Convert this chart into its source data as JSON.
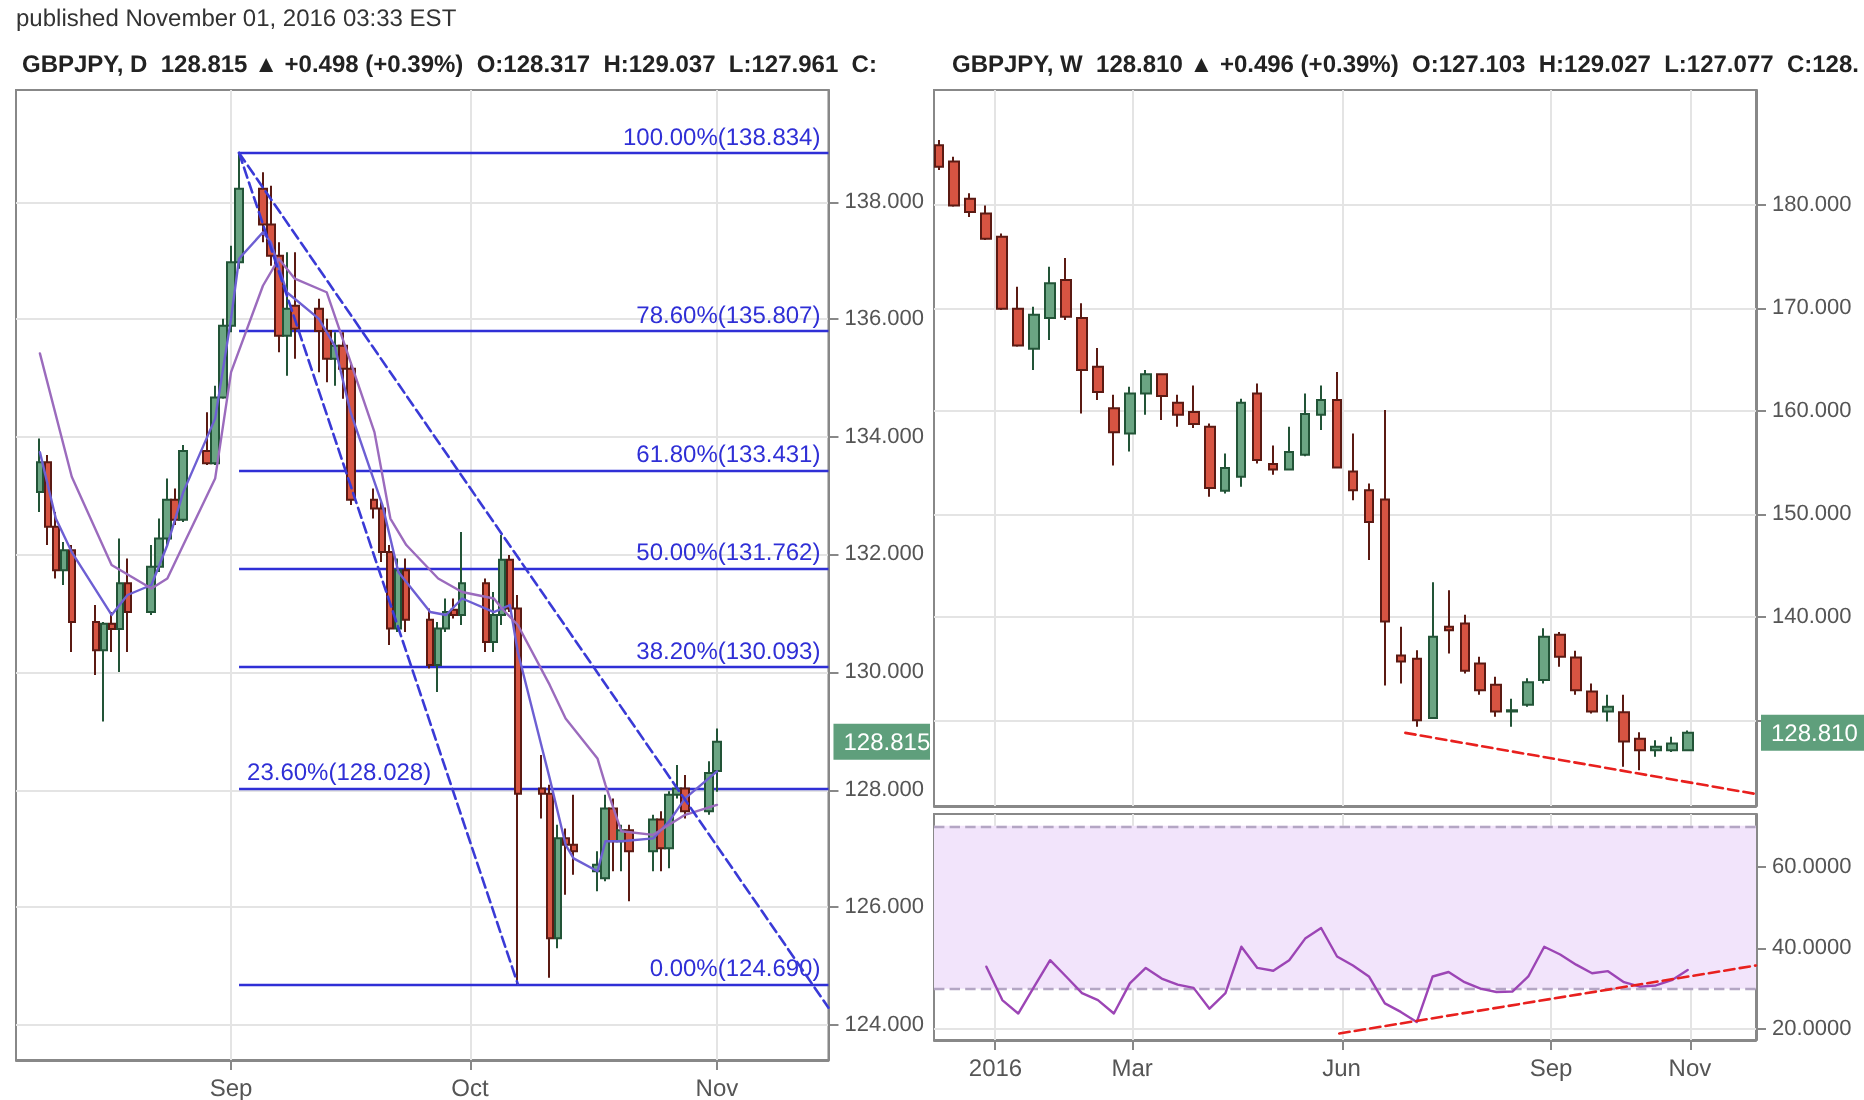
{
  "chart_data": [
    {
      "type": "candlestick",
      "title": "GBPJPY, D  128.815 ▲ +0.498 (+0.39%)  O:128.317  H:129.037  L:127.961  C:",
      "annotations": [
        "published November 01, 2016 03:33 EST",
        "128.815"
      ],
      "x": [
        "2016-08-08",
        "2016-08-09",
        "2016-08-10",
        "2016-08-11",
        "2016-08-12",
        "2016-08-15",
        "2016-08-16",
        "2016-08-17",
        "2016-08-18",
        "2016-08-19",
        "2016-08-22",
        "2016-08-23",
        "2016-08-24",
        "2016-08-25",
        "2016-08-26",
        "2016-08-29",
        "2016-08-30",
        "2016-08-31",
        "2016-09-01",
        "2016-09-02",
        "2016-09-05",
        "2016-09-06",
        "2016-09-07",
        "2016-09-08",
        "2016-09-09",
        "2016-09-12",
        "2016-09-13",
        "2016-09-14",
        "2016-09-15",
        "2016-09-16",
        "2016-09-19",
        "2016-09-20",
        "2016-09-21",
        "2016-09-22",
        "2016-09-23",
        "2016-09-26",
        "2016-09-27",
        "2016-09-28",
        "2016-09-29",
        "2016-09-30",
        "2016-10-03",
        "2016-10-04",
        "2016-10-05",
        "2016-10-06",
        "2016-10-07",
        "2016-10-10",
        "2016-10-11",
        "2016-10-12",
        "2016-10-13",
        "2016-10-14",
        "2016-10-17",
        "2016-10-18",
        "2016-10-19",
        "2016-10-20",
        "2016-10-21",
        "2016-10-24",
        "2016-10-25",
        "2016-10-26",
        "2016-10-27",
        "2016-10-28",
        "2016-10-31",
        "2016-11-01"
      ],
      "ohlc": [
        [
          133.06,
          133.97,
          132.72,
          133.57
        ],
        [
          133.57,
          133.69,
          132.16,
          132.47
        ],
        [
          132.47,
          132.72,
          131.59,
          131.73
        ],
        [
          131.73,
          132.21,
          131.48,
          132.07
        ],
        [
          132.07,
          132.16,
          130.34,
          130.85
        ],
        [
          130.85,
          131.14,
          129.95,
          130.37
        ],
        [
          130.37,
          130.85,
          129.16,
          130.82
        ],
        [
          130.82,
          131.02,
          130.34,
          130.73
        ],
        [
          130.73,
          132.27,
          130.0,
          131.51
        ],
        [
          131.51,
          131.93,
          130.34,
          131.02
        ],
        [
          131.02,
          132.16,
          130.97,
          131.79
        ],
        [
          131.79,
          132.61,
          131.7,
          132.27
        ],
        [
          132.27,
          133.29,
          132.16,
          132.93
        ],
        [
          132.93,
          133.12,
          132.5,
          132.59
        ],
        [
          132.59,
          133.86,
          132.55,
          133.76
        ],
        [
          133.76,
          134.42,
          133.52,
          133.55
        ],
        [
          133.55,
          134.87,
          133.52,
          134.67
        ],
        [
          134.67,
          136.01,
          134.65,
          135.89
        ],
        [
          135.89,
          137.25,
          135.78,
          136.97
        ],
        [
          136.97,
          138.83,
          136.86,
          138.22
        ],
        [
          138.22,
          138.5,
          137.31,
          137.61
        ],
        [
          137.61,
          138.27,
          136.91,
          137.08
        ],
        [
          137.08,
          137.31,
          135.44,
          135.72
        ],
        [
          135.72,
          137.14,
          135.04,
          136.18
        ],
        [
          136.23,
          137.14,
          135.33,
          135.84
        ],
        [
          136.18,
          136.35,
          135.1,
          135.8
        ],
        [
          135.8,
          136.01,
          134.93,
          135.33
        ],
        [
          135.33,
          135.78,
          134.87,
          135.55
        ],
        [
          135.55,
          135.78,
          134.65,
          135.16
        ],
        [
          135.16,
          135.27,
          132.84,
          132.93
        ],
        [
          132.93,
          133.12,
          132.61,
          132.78
        ],
        [
          132.78,
          132.89,
          131.87,
          132.04
        ],
        [
          132.04,
          132.16,
          130.46,
          130.74
        ],
        [
          130.74,
          131.93,
          130.68,
          131.73
        ],
        [
          131.73,
          131.93,
          130.68,
          130.89
        ],
        [
          130.89,
          131.08,
          130.06,
          130.12
        ],
        [
          130.12,
          130.85,
          129.66,
          130.74
        ],
        [
          130.74,
          131.25,
          130.68,
          131.02
        ],
        [
          131.06,
          131.25,
          130.91,
          130.97
        ],
        [
          130.97,
          132.38,
          130.8,
          131.51
        ],
        [
          131.51,
          131.59,
          130.34,
          130.51
        ],
        [
          130.51,
          131.36,
          130.34,
          130.97
        ],
        [
          130.97,
          132.33,
          130.8,
          131.91
        ],
        [
          131.91,
          131.99,
          131.02,
          131.08
        ],
        [
          131.08,
          131.31,
          124.69,
          127.93
        ],
        [
          128.02,
          128.59,
          127.51,
          127.93
        ],
        [
          127.93,
          128.08,
          124.8,
          125.47
        ],
        [
          125.47,
          127.4,
          125.3,
          127.17
        ],
        [
          127.17,
          127.34,
          126.21,
          127.06
        ],
        [
          127.06,
          127.91,
          126.55,
          126.95
        ],
        [
          126.61,
          126.95,
          126.27,
          126.72
        ],
        [
          126.49,
          127.91,
          126.44,
          127.68
        ],
        [
          127.68,
          127.85,
          126.61,
          127.12
        ],
        [
          127.12,
          127.4,
          126.61,
          127.31
        ],
        [
          127.31,
          127.4,
          126.1,
          126.95
        ],
        [
          126.95,
          127.57,
          126.61,
          127.49
        ],
        [
          127.49,
          127.63,
          126.61,
          127.0
        ],
        [
          127.0,
          127.97,
          126.66,
          127.91
        ],
        [
          127.91,
          128.42,
          127.85,
          128.02
        ],
        [
          128.02,
          128.25,
          127.51,
          127.63
        ],
        [
          127.63,
          128.48,
          127.57,
          128.28
        ],
        [
          128.317,
          129.037,
          127.961,
          128.815
        ]
      ],
      "series": [
        {
          "type": "line",
          "color": "#6d5fd3",
          "x": [
            "2016-08-08",
            "2016-08-10",
            "2016-08-12",
            "2016-08-17",
            "2016-08-19",
            "2016-08-22",
            "2016-08-24",
            "2016-08-26",
            "2016-08-30",
            "2016-09-01",
            "2016-09-02",
            "2016-09-05",
            "2016-09-06",
            "2016-09-08",
            "2016-09-12",
            "2016-09-14",
            "2016-09-16",
            "2016-09-20",
            "2016-09-22",
            "2016-09-26",
            "2016-09-28",
            "2016-09-30",
            "2016-10-04",
            "2016-10-06",
            "2016-10-07",
            "2016-10-11",
            "2016-10-13",
            "2016-10-14",
            "2016-10-17",
            "2016-10-18",
            "2016-10-20",
            "2016-10-24",
            "2016-10-26",
            "2016-10-28",
            "2016-11-01"
          ],
          "values": [
            133.74,
            132.61,
            132.04,
            130.97,
            131.31,
            131.48,
            132.16,
            133.06,
            134.31,
            136.01,
            137.03,
            137.48,
            137.31,
            136.46,
            136.01,
            135.55,
            134.42,
            132.84,
            131.7,
            131.02,
            130.97,
            131.25,
            131.02,
            131.14,
            130.34,
            128.19,
            127.06,
            126.83,
            126.61,
            127.12,
            127.12,
            127.17,
            127.46,
            127.85,
            128.31
          ]
        },
        {
          "type": "line",
          "color": "#9b6bbd",
          "x": [
            "2016-08-08",
            "2016-08-12",
            "2016-08-17",
            "2016-08-22",
            "2016-08-24",
            "2016-08-26",
            "2016-08-30",
            "2016-09-01",
            "2016-09-05",
            "2016-09-07",
            "2016-09-09",
            "2016-09-13",
            "2016-09-15",
            "2016-09-19",
            "2016-09-21",
            "2016-09-23",
            "2016-09-27",
            "2016-09-30",
            "2016-10-04",
            "2016-10-05",
            "2016-10-07",
            "2016-10-11",
            "2016-10-13",
            "2016-10-17",
            "2016-10-18",
            "2016-10-20",
            "2016-10-24",
            "2016-10-26",
            "2016-10-28",
            "2016-11-01"
          ],
          "values": [
            135.42,
            133.32,
            131.82,
            131.42,
            131.59,
            132.16,
            133.29,
            135.1,
            136.57,
            137.03,
            136.69,
            136.46,
            135.67,
            134.08,
            132.61,
            132.16,
            131.59,
            131.36,
            131.25,
            131.08,
            130.8,
            129.78,
            129.21,
            128.53,
            128.08,
            127.29,
            127.23,
            127.4,
            127.57,
            127.74
          ]
        },
        {
          "type": "line",
          "color": "#3a3ad6",
          "line_style": "dashed",
          "x": [
            "2016-09-02",
            "2016-11-15"
          ],
          "values": [
            138.83,
            124.29
          ]
        },
        {
          "type": "line",
          "color": "#3a3ad6",
          "line_style": "dashed",
          "x": [
            "2016-09-02",
            "2016-10-07"
          ],
          "values": [
            138.83,
            124.69
          ]
        }
      ],
      "ref_lines": [
        {
          "axis": "y",
          "value": 138.834,
          "label": "100.00%(138.834)",
          "color": "#2f2fd6"
        },
        {
          "axis": "y",
          "value": 135.807,
          "label": "78.60%(135.807)",
          "color": "#2f2fd6"
        },
        {
          "axis": "y",
          "value": 133.431,
          "label": "61.80%(133.431)",
          "color": "#2f2fd6"
        },
        {
          "axis": "y",
          "value": 131.762,
          "label": "50.00%(131.762)",
          "color": "#2f2fd6"
        },
        {
          "axis": "y",
          "value": 130.093,
          "label": "38.20%(130.093)",
          "color": "#2f2fd6"
        },
        {
          "axis": "y",
          "value": 128.028,
          "label": "23.60%(128.028)",
          "color": "#2f2fd6"
        },
        {
          "axis": "y",
          "value": 124.69,
          "label": "0.00%(124.690)",
          "color": "#2f2fd6"
        }
      ],
      "xlim": [
        "2016-08-05",
        "2016-11-15"
      ],
      "xticks": [
        {
          "value": "2016-09-01",
          "label": "Sep"
        },
        {
          "value": "2016-10-01",
          "label": "Oct"
        },
        {
          "value": "2016-11-01",
          "label": "Nov"
        }
      ],
      "ylim": [
        123.4,
        139.9
      ],
      "yticks": [
        {
          "value": 124,
          "label": "124.000"
        },
        {
          "value": 126,
          "label": "126.000"
        },
        {
          "value": 128,
          "label": "128.000"
        },
        {
          "value": 130,
          "label": "130.000"
        },
        {
          "value": 132,
          "label": "132.000"
        },
        {
          "value": 134,
          "label": "134.000"
        },
        {
          "value": 136,
          "label": "136.000"
        },
        {
          "value": 138,
          "label": "138.000"
        }
      ],
      "grid": true,
      "marker": "none"
    },
    {
      "type": "candlestick",
      "title": "GBPJPY, W  128.810 ▲ +0.496 (+0.39%)  O:127.103  H:129.027  L:127.077  C:128.",
      "annotations": [
        "128.810"
      ],
      "x": [
        "2015-12-07",
        "2015-12-14",
        "2015-12-21",
        "2015-12-28",
        "2016-01-04",
        "2016-01-11",
        "2016-01-18",
        "2016-01-25",
        "2016-02-01",
        "2016-02-08",
        "2016-02-15",
        "2016-02-22",
        "2016-02-29",
        "2016-03-07",
        "2016-03-14",
        "2016-03-21",
        "2016-03-28",
        "2016-04-04",
        "2016-04-11",
        "2016-04-18",
        "2016-04-25",
        "2016-05-02",
        "2016-05-09",
        "2016-05-16",
        "2016-05-23",
        "2016-05-30",
        "2016-06-06",
        "2016-06-13",
        "2016-06-20",
        "2016-06-27",
        "2016-07-04",
        "2016-07-11",
        "2016-07-18",
        "2016-07-25",
        "2016-08-01",
        "2016-08-08",
        "2016-08-15",
        "2016-08-22",
        "2016-08-29",
        "2016-09-05",
        "2016-09-12",
        "2016-09-19",
        "2016-09-26",
        "2016-10-03",
        "2016-10-10",
        "2016-10-17",
        "2016-10-24",
        "2016-10-31"
      ],
      "ohlc": [
        [
          185.83,
          186.34,
          183.43,
          183.75
        ],
        [
          184.27,
          184.73,
          179.87,
          180.0
        ],
        [
          180.65,
          181.17,
          178.87,
          179.35
        ],
        [
          179.22,
          180.0,
          176.63,
          176.76
        ],
        [
          176.96,
          177.28,
          169.84,
          169.97
        ],
        [
          169.97,
          172.1,
          166.28,
          166.41
        ],
        [
          166.08,
          170.16,
          164.01,
          169.39
        ],
        [
          169.06,
          174.05,
          166.93,
          172.43
        ],
        [
          172.75,
          174.89,
          168.87,
          169.19
        ],
        [
          169.06,
          170.49,
          159.81,
          164.01
        ],
        [
          164.34,
          166.15,
          161.1,
          161.88
        ],
        [
          160.32,
          161.62,
          154.76,
          157.99
        ],
        [
          157.86,
          162.39,
          156.12,
          161.75
        ],
        [
          161.75,
          164.01,
          159.68,
          163.62
        ],
        [
          163.62,
          163.69,
          159.16,
          161.49
        ],
        [
          160.84,
          161.62,
          158.51,
          159.68
        ],
        [
          159.94,
          162.52,
          158.38,
          158.77
        ],
        [
          158.51,
          158.83,
          151.72,
          152.56
        ],
        [
          152.3,
          155.92,
          152.04,
          154.5
        ],
        [
          153.66,
          161.23,
          152.69,
          160.84
        ],
        [
          161.75,
          162.72,
          154.95,
          155.28
        ],
        [
          154.89,
          156.7,
          153.85,
          154.37
        ],
        [
          154.37,
          158.51,
          154.3,
          156.05
        ],
        [
          155.79,
          161.75,
          155.66,
          159.74
        ],
        [
          159.68,
          162.52,
          158.19,
          161.1
        ],
        [
          161.1,
          163.82,
          154.5,
          154.56
        ],
        [
          154.17,
          157.86,
          151.39,
          152.36
        ],
        [
          152.36,
          153.01,
          145.57,
          149.26
        ],
        [
          151.46,
          160.13,
          133.4,
          139.61
        ],
        [
          136.31,
          139.09,
          133.59,
          135.73
        ],
        [
          135.99,
          136.83,
          129.39,
          130.03
        ],
        [
          130.23,
          143.43,
          130.23,
          138.12
        ],
        [
          139.09,
          142.65,
          136.5,
          138.77
        ],
        [
          139.42,
          140.26,
          134.56,
          134.82
        ],
        [
          135.53,
          136.18,
          132.49,
          132.94
        ],
        [
          133.46,
          134.24,
          130.36,
          130.87
        ],
        [
          130.87,
          132.1,
          129.39,
          131.0
        ],
        [
          131.52,
          134.11,
          131.33,
          133.72
        ],
        [
          133.92,
          138.96,
          133.59,
          138.12
        ],
        [
          138.32,
          138.58,
          135.21,
          136.18
        ],
        [
          136.12,
          136.76,
          132.49,
          132.94
        ],
        [
          132.82,
          133.59,
          130.68,
          130.87
        ],
        [
          130.87,
          132.49,
          129.9,
          131.33
        ],
        [
          130.81,
          132.49,
          125.5,
          127.96
        ],
        [
          128.22,
          128.87,
          125.18,
          127.12
        ],
        [
          127.12,
          128.09,
          126.47,
          127.44
        ],
        [
          127.12,
          128.41,
          126.93,
          127.77
        ],
        [
          127.103,
          129.027,
          127.077,
          128.81
        ]
      ],
      "series": [
        {
          "type": "line",
          "color": "#e8201e",
          "line_style": "dashed",
          "x": [
            "2016-06-29",
            "2016-11-29"
          ],
          "values": [
            128.8,
            122.9
          ]
        }
      ],
      "xlim": [
        "2015-12-05",
        "2016-11-30"
      ],
      "xticks": [
        {
          "value": "2016-01-01",
          "label": null
        },
        {
          "value": "2016-03-01",
          "label": null
        },
        {
          "value": "2016-06-01",
          "label": null
        },
        {
          "value": "2016-09-01",
          "label": null
        },
        {
          "value": "2016-11-01",
          "label": null
        }
      ],
      "ylim": [
        121.7,
        191.2
      ],
      "yticks": [
        {
          "value": 130,
          "label": null
        },
        {
          "value": 140,
          "label": "140.000"
        },
        {
          "value": 150,
          "label": "150.000"
        },
        {
          "value": 160,
          "label": "160.000"
        },
        {
          "value": 170,
          "label": "170.000"
        },
        {
          "value": 180,
          "label": "180.000"
        }
      ],
      "tick_labels": "y",
      "grid": true,
      "marker": "none"
    },
    {
      "type": "line",
      "series": [
        {
          "color": "#9c45b5",
          "x": [
            "2015-12-28",
            "2016-01-04",
            "2016-01-11",
            "2016-01-18",
            "2016-01-25",
            "2016-02-01",
            "2016-02-08",
            "2016-02-15",
            "2016-02-22",
            "2016-02-29",
            "2016-03-07",
            "2016-03-14",
            "2016-03-21",
            "2016-03-28",
            "2016-04-04",
            "2016-04-11",
            "2016-04-18",
            "2016-04-25",
            "2016-05-02",
            "2016-05-09",
            "2016-05-16",
            "2016-05-23",
            "2016-05-30",
            "2016-06-06",
            "2016-06-13",
            "2016-06-20",
            "2016-06-27",
            "2016-07-04",
            "2016-07-11",
            "2016-07-18",
            "2016-07-25",
            "2016-08-01",
            "2016-08-08",
            "2016-08-15",
            "2016-08-22",
            "2016-08-29",
            "2016-09-05",
            "2016-09-12",
            "2016-09-19",
            "2016-09-26",
            "2016-10-03",
            "2016-10-10",
            "2016-10-17",
            "2016-10-24",
            "2016-10-31"
          ],
          "values": [
            35.4,
            27.2,
            23.9,
            30.5,
            37.0,
            33.0,
            28.9,
            27.2,
            23.9,
            31.3,
            35.1,
            32.5,
            31.0,
            30.2,
            25.1,
            28.9,
            40.3,
            35.1,
            34.4,
            37.0,
            42.3,
            44.9,
            37.9,
            35.7,
            33.0,
            26.4,
            24.3,
            21.8,
            33.0,
            34.1,
            31.6,
            30.0,
            29.2,
            29.3,
            33.0,
            40.3,
            38.4,
            35.9,
            33.8,
            34.3,
            31.6,
            30.5,
            30.8,
            32.1,
            34.6
          ]
        },
        {
          "color": "#e8201e",
          "line_style": "dashed",
          "x": [
            "2016-05-31",
            "2016-11-30"
          ],
          "values": [
            19.0,
            35.7
          ]
        }
      ],
      "bands": [
        {
          "axis": "y",
          "from": 30,
          "to": 70,
          "color": "#f2e4fb"
        }
      ],
      "ref_lines": [
        {
          "axis": "y",
          "value": 70,
          "label": null,
          "color": "#b4a6c4",
          "line_style": "dashed"
        },
        {
          "axis": "y",
          "value": 30,
          "label": null,
          "color": "#b4a6c4",
          "line_style": "dashed"
        }
      ],
      "xlim": [
        "2015-12-05",
        "2016-11-30"
      ],
      "xticks": [
        {
          "value": "2016-01-01",
          "label": "2016"
        },
        {
          "value": "2016-03-01",
          "label": "Mar"
        },
        {
          "value": "2016-06-01",
          "label": "Jun"
        },
        {
          "value": "2016-09-01",
          "label": "Sep"
        },
        {
          "value": "2016-11-01",
          "label": "Nov"
        }
      ],
      "ylim": [
        17.4,
        72.9
      ],
      "yticks": [
        {
          "value": 20,
          "label": "20.0000"
        },
        {
          "value": 40,
          "label": "40.0000"
        },
        {
          "value": 60,
          "label": "60.0000"
        }
      ],
      "grid": true,
      "marker": "none"
    }
  ]
}
